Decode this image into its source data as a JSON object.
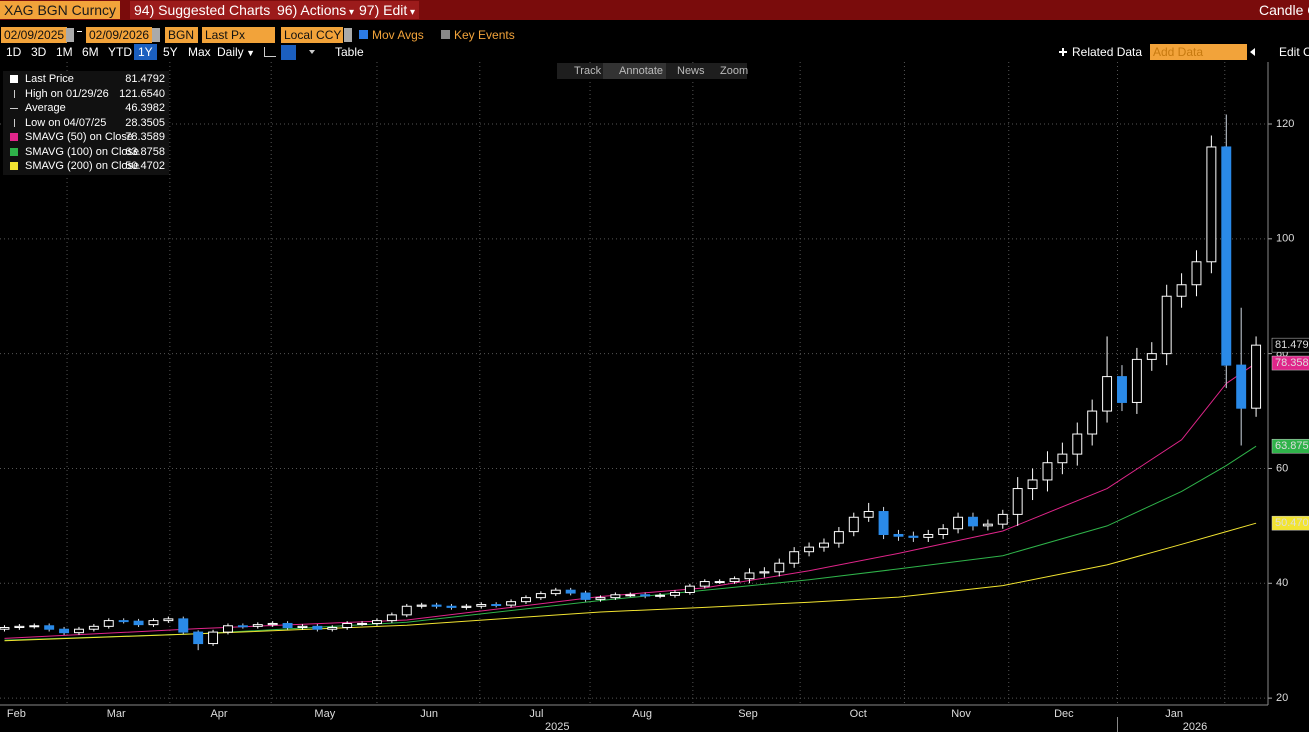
{
  "header": {
    "ticker": "XAG BGN Curncy",
    "menus": [
      "94) Suggested Charts",
      "96) Actions",
      "97) Edit"
    ],
    "chart_kind": "Candle C"
  },
  "toolbar": {
    "start": "02/09/2025",
    "end": "02/09/2026",
    "source": "BGN",
    "field": "Last Px",
    "currency": "Local CCY",
    "mov_avgs": "Mov Avgs",
    "key_events": "Key Events",
    "periods": [
      "1D",
      "3D",
      "1M",
      "6M",
      "YTD",
      "1Y",
      "5Y",
      "Max"
    ],
    "frequency": "Daily",
    "table": "Table",
    "related": "Related Data",
    "add_data": "Add Data",
    "edit": "Edit Ch"
  },
  "chart_tools": [
    "Track",
    "Annotate",
    "News",
    "Zoom"
  ],
  "legend": [
    {
      "label": "Last Price"
    },
    {
      "label": "High on 01/29/26",
      "value": "121.6540"
    },
    {
      "label": "Average",
      "value": "46.3982"
    },
    {
      "label": "Low on 04/07/25"
    }
  ],
  "chart_data": {
    "type": "candlestick",
    "up_color": "#ffffff",
    "down_color": "#2a8ae8",
    "grid": true,
    "open": [
      32.0,
      32.3,
      32.5,
      32.6,
      32.0,
      31.4,
      32.0,
      32.5,
      33.5,
      33.4,
      32.8,
      33.5,
      33.8,
      31.5,
      29.5,
      31.5,
      32.6,
      32.5,
      32.8,
      33.0,
      32.3,
      32.5,
      32.0,
      32.3,
      33.0,
      33.0,
      33.5,
      34.5,
      36.0,
      36.2,
      36.0,
      35.8,
      36.0,
      36.3,
      36.2,
      36.8,
      37.5,
      38.2,
      38.8,
      38.3,
      37.2,
      37.5,
      38.0,
      38.0,
      37.8,
      37.9,
      38.4,
      39.5,
      40.3,
      40.3,
      40.8,
      41.8,
      42.0,
      43.5,
      45.5,
      46.3,
      47.0,
      49.0,
      51.5,
      52.5,
      48.5,
      48.2,
      48.0,
      48.5,
      49.5,
      51.5,
      50.0,
      50.3,
      52.0,
      56.5,
      58.0,
      61.0,
      62.5,
      66.0,
      70.0,
      76.0,
      71.5,
      79.0,
      80.0,
      90.0,
      92.0,
      96.0,
      116.0,
      78.0,
      70.5
    ],
    "high": [
      32.7,
      32.9,
      33.0,
      33.0,
      32.4,
      32.4,
      32.9,
      33.9,
      33.9,
      33.8,
      33.9,
      34.2,
      34.2,
      31.8,
      31.9,
      33.0,
      33.0,
      33.2,
      33.4,
      33.4,
      32.9,
      32.9,
      32.7,
      33.4,
      33.4,
      33.9,
      34.9,
      36.4,
      36.6,
      36.6,
      36.4,
      36.4,
      36.7,
      36.7,
      37.2,
      37.9,
      38.6,
      39.2,
      39.2,
      38.7,
      37.9,
      38.4,
      38.4,
      38.4,
      38.3,
      38.8,
      39.9,
      40.7,
      40.7,
      41.2,
      42.6,
      42.8,
      44.3,
      46.3,
      47.1,
      47.8,
      49.8,
      52.3,
      54.0,
      53.3,
      49.3,
      49.0,
      49.3,
      50.3,
      52.3,
      52.3,
      51.1,
      52.8,
      58.5,
      60.0,
      63.0,
      64.5,
      68.0,
      72.0,
      83.0,
      78.0,
      81.0,
      82.0,
      92.0,
      94.0,
      98.0,
      118.0,
      121.654,
      88.0,
      83.0
    ],
    "low": [
      31.6,
      31.9,
      32.1,
      31.6,
      31.0,
      31.0,
      31.6,
      32.1,
      33.0,
      32.4,
      32.4,
      33.1,
      31.1,
      28.3505,
      29.1,
      31.1,
      32.1,
      32.1,
      32.4,
      31.9,
      31.9,
      31.6,
      31.6,
      31.9,
      32.6,
      32.6,
      33.1,
      34.1,
      35.6,
      35.6,
      35.4,
      35.4,
      35.6,
      35.8,
      35.8,
      36.4,
      37.1,
      37.8,
      37.9,
      36.8,
      36.8,
      37.1,
      37.6,
      37.4,
      37.4,
      37.5,
      38.0,
      39.1,
      39.9,
      39.9,
      40.0,
      41.0,
      41.2,
      42.7,
      44.7,
      45.5,
      46.2,
      48.2,
      50.7,
      47.7,
      47.4,
      47.2,
      47.2,
      47.7,
      48.7,
      49.2,
      49.2,
      49.5,
      50.0,
      54.5,
      56.0,
      59.0,
      60.5,
      64.0,
      68.0,
      70.0,
      69.5,
      77.0,
      78.0,
      88.0,
      90.0,
      94.0,
      74.0,
      64.0,
      69.0
    ],
    "close": [
      32.3,
      32.5,
      32.6,
      32.0,
      31.4,
      32.0,
      32.5,
      33.5,
      33.4,
      32.8,
      33.5,
      33.8,
      31.5,
      29.5,
      31.5,
      32.6,
      32.5,
      32.8,
      33.0,
      32.3,
      32.5,
      32.0,
      32.3,
      33.0,
      33.0,
      33.5,
      34.5,
      36.0,
      36.2,
      36.0,
      35.8,
      36.0,
      36.3,
      36.2,
      36.8,
      37.5,
      38.2,
      38.8,
      38.3,
      37.2,
      37.5,
      38.0,
      38.0,
      37.8,
      37.9,
      38.4,
      39.5,
      40.3,
      40.3,
      40.8,
      41.8,
      42.0,
      43.5,
      45.5,
      46.3,
      47.0,
      49.0,
      51.5,
      52.5,
      48.5,
      48.2,
      48.0,
      48.5,
      49.5,
      51.5,
      50.0,
      50.3,
      52.0,
      56.5,
      58.0,
      61.0,
      62.5,
      66.0,
      70.0,
      76.0,
      71.5,
      79.0,
      80.0,
      90.0,
      92.0,
      96.0,
      116.0,
      78.0,
      70.5,
      81.4792
    ],
    "series": [
      {
        "name": "SMAVG (50)  on Close",
        "color": "#e0258a",
        "x": [
          0,
          13,
          27,
          40,
          47,
          54,
          60,
          67,
          74,
          79,
          82,
          84
        ],
        "values": [
          30.4,
          32.1,
          33.6,
          37.7,
          39.2,
          42.2,
          45.2,
          49.1,
          56.5,
          65.0,
          74.8,
          78.3589
        ]
      },
      {
        "name": "SMAVG (100)  on Close",
        "color": "#2fb34a",
        "x": [
          0,
          13,
          27,
          40,
          47,
          54,
          60,
          67,
          74,
          79,
          82,
          84
        ],
        "values": [
          30.1,
          31.2,
          33.2,
          37.0,
          38.8,
          40.6,
          42.5,
          44.8,
          50.0,
          56.0,
          60.5,
          63.8758
        ]
      },
      {
        "name": "SMAVG (200)  on Close",
        "color": "#f2e431",
        "x": [
          0,
          13,
          27,
          40,
          47,
          54,
          60,
          67,
          74,
          79,
          82,
          84
        ],
        "values": [
          30.0,
          31.2,
          32.7,
          35.0,
          35.8,
          36.7,
          37.6,
          39.6,
          43.2,
          46.8,
          49.0,
          50.4702
        ]
      }
    ],
    "xlim": [
      -0.3,
      84.8
    ],
    "xticks": [
      {
        "value": 0.8,
        "label": "Feb"
      },
      {
        "value": 7.5,
        "label": "Mar"
      },
      {
        "value": 14.4,
        "label": "Apr"
      },
      {
        "value": 21.5,
        "label": "May"
      },
      {
        "value": 28.5,
        "label": "Jun"
      },
      {
        "value": 35.7,
        "label": "Jul"
      },
      {
        "value": 42.8,
        "label": "Aug"
      },
      {
        "value": 49.9,
        "label": "Sep"
      },
      {
        "value": 57.3,
        "label": "Oct"
      },
      {
        "value": 64.2,
        "label": "Nov"
      },
      {
        "value": 71.1,
        "label": "Dec"
      },
      {
        "value": 78.5,
        "label": "Jan"
      }
    ],
    "xgrid": [
      4.2,
      11.1,
      17.9,
      25.0,
      31.9,
      39.3,
      46.2,
      53.4,
      60.4,
      67.4,
      74.7,
      81.9
    ],
    "yearticks": [
      {
        "value": 37.1,
        "label": "2025"
      },
      {
        "value": 79.9,
        "label": "2026"
      }
    ],
    "ylim": [
      18.8,
      130.8
    ],
    "yticks": [
      20,
      40,
      60,
      80,
      100,
      120
    ]
  }
}
